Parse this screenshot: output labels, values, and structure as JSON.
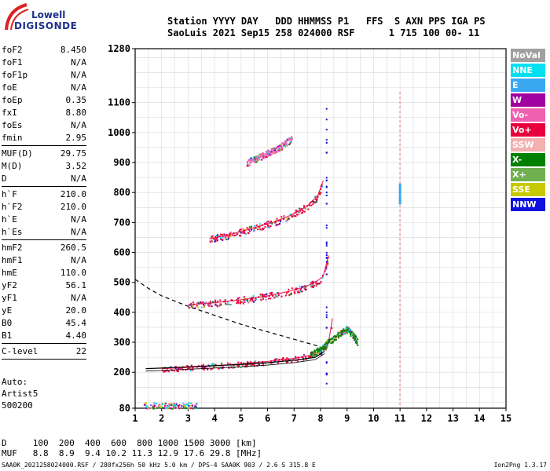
{
  "logo": {
    "line1": "Lowell",
    "line2": "DIGISONDE"
  },
  "header": {
    "line1": "Station YYYY DAY   DDD HHMMSS P1   FFS  S AXN PPS IGA PS",
    "line2": "SaoLuis 2021 Sep15 258 024000 RSF      1 715 100 00- 11"
  },
  "params": [
    {
      "label": "foF2",
      "value": "8.450"
    },
    {
      "label": "foF1",
      "value": "N/A"
    },
    {
      "label": "foF1p",
      "value": "N/A"
    },
    {
      "label": "foE",
      "value": "N/A"
    },
    {
      "label": "foEp",
      "value": "0.35"
    },
    {
      "label": "fxI",
      "value": "8.80"
    },
    {
      "label": "foEs",
      "value": "N/A"
    },
    {
      "label": "fmin",
      "value": "2.95"
    },
    {
      "sep": true
    },
    {
      "label": "MUF(D)",
      "value": "29.75"
    },
    {
      "label": "M(D)",
      "value": "3.52"
    },
    {
      "label": "D",
      "value": "N/A"
    },
    {
      "sep": true
    },
    {
      "label": "h`F",
      "value": "210.0"
    },
    {
      "label": "h`F2",
      "value": "210.0"
    },
    {
      "label": "h`E",
      "value": "N/A"
    },
    {
      "label": "h`Es",
      "value": "N/A"
    },
    {
      "sep": true
    },
    {
      "label": "hmF2",
      "value": "260.5"
    },
    {
      "label": "hmF1",
      "value": "N/A"
    },
    {
      "label": "hmE",
      "value": "110.0"
    },
    {
      "label": "yF2",
      "value": "56.1"
    },
    {
      "label": "yF1",
      "value": "N/A"
    },
    {
      "label": "yE",
      "value": "20.0"
    },
    {
      "label": "B0",
      "value": "45.4"
    },
    {
      "label": "B1",
      "value": "4.40"
    },
    {
      "sep": true
    },
    {
      "label": "C-level",
      "value": "22"
    },
    {
      "sep": true
    }
  ],
  "artist": "Auto:\nArtist5\n500200",
  "legend": [
    {
      "label": "NoVal",
      "color": "#a0a0a0"
    },
    {
      "label": "NNE",
      "color": "#00e0f0"
    },
    {
      "label": "E",
      "color": "#3aa8f0"
    },
    {
      "label": "W",
      "color": "#a000a0"
    },
    {
      "label": "Vo-",
      "color": "#f060b0"
    },
    {
      "label": "Vo+",
      "color": "#e8003c"
    },
    {
      "label": "SSW",
      "color": "#f2b0b0"
    },
    {
      "label": "X-",
      "color": "#008000"
    },
    {
      "label": "X+",
      "color": "#70b050"
    },
    {
      "label": "SSE",
      "color": "#c8c800"
    },
    {
      "label": "NNW",
      "color": "#1010e0"
    }
  ],
  "table": {
    "line1": "D     100  200  400  600  800 1000 1500 3000 [km]",
    "line2": "MUF   8.8  8.9  9.4 10.2 11.3 12.9 17.6 29.8 [MHz]"
  },
  "footer": {
    "left": "SAA0K_2021258024000.RSF / 280fx256h 50 kHz 5.0 km / DPS-4 SAA0K 903 / 2.6 S 315.8 E",
    "right": "Ion2Png 1.3.17"
  },
  "chart_data": {
    "type": "scatter",
    "xlim": [
      1,
      15
    ],
    "ylim": [
      80,
      1280
    ],
    "x_ticks": [
      1,
      2,
      3,
      4,
      5,
      6,
      7,
      8,
      9,
      10,
      11,
      12,
      13,
      14,
      15
    ],
    "y_ticks": [
      80,
      200,
      300,
      400,
      500,
      600,
      700,
      800,
      900,
      1000,
      1100,
      1280
    ],
    "grid": true,
    "series": [
      {
        "color": "#e8003c",
        "trace": "F-layer O-trace",
        "x": [
          2.0,
          3.0,
          4.0,
          5.0,
          6.0,
          7.0,
          7.6,
          8.0,
          8.3,
          8.45
        ],
        "y": [
          212,
          216,
          222,
          228,
          236,
          246,
          256,
          270,
          300,
          380
        ]
      },
      {
        "color": "#e8003c",
        "trace": "2nd hop",
        "x": [
          3.0,
          4.0,
          5.0,
          6.0,
          6.8,
          7.4,
          7.8,
          8.1,
          8.3
        ],
        "y": [
          425,
          432,
          442,
          455,
          470,
          485,
          500,
          520,
          590
        ]
      },
      {
        "color": "#e8003c",
        "trace": "3rd hop",
        "x": [
          3.8,
          4.6,
          5.4,
          6.2,
          6.9,
          7.5,
          7.9,
          8.1
        ],
        "y": [
          645,
          660,
          680,
          700,
          725,
          755,
          790,
          840
        ]
      },
      {
        "color": "#008000",
        "trace": "X-trace",
        "x": [
          7.6,
          8.0,
          8.4,
          8.7,
          9.0,
          9.2,
          9.4
        ],
        "y": [
          260,
          280,
          310,
          330,
          345,
          325,
          300
        ]
      },
      {
        "color": "#f060b0",
        "trace": "4th hop",
        "x": [
          5.2,
          5.8,
          6.4,
          6.9
        ],
        "y": [
          900,
          925,
          950,
          980
        ]
      }
    ],
    "profile": {
      "x": [
        1.4,
        2.0,
        3.0,
        4.0,
        5.0,
        6.0,
        7.0,
        7.8,
        8.15
      ],
      "y": [
        212,
        214,
        218,
        222,
        226,
        232,
        240,
        250,
        270
      ]
    },
    "muf_curve": {
      "x": [
        1.0,
        1.5,
        2.0,
        3.0,
        4.0,
        5.0,
        6.0,
        7.0,
        8.0
      ],
      "y": [
        510,
        480,
        455,
        420,
        390,
        360,
        335,
        310,
        285
      ]
    }
  }
}
